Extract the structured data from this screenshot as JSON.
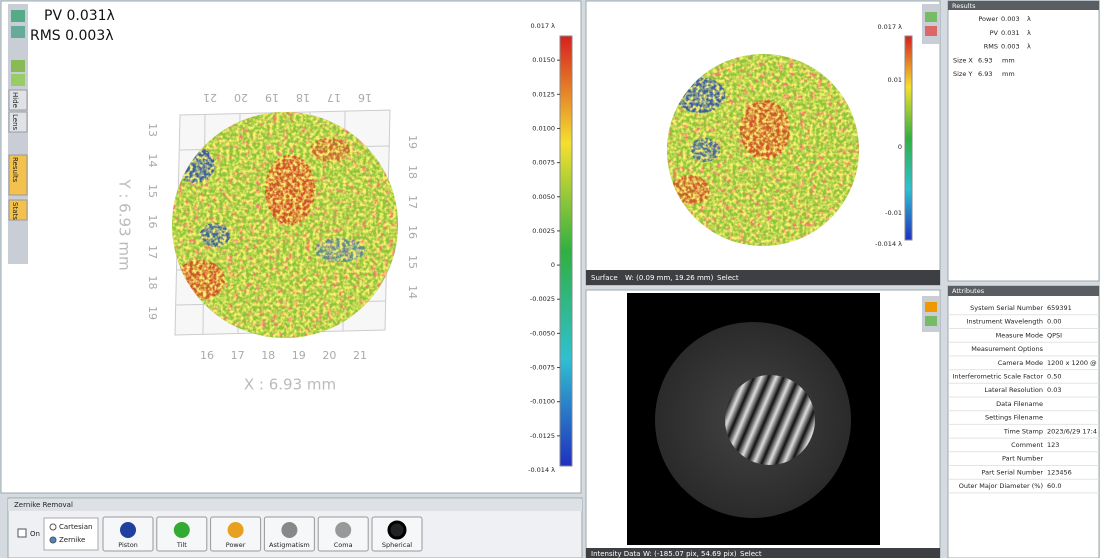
{
  "main_view": {
    "pv_label": "PV 0.031λ",
    "rms_label": "RMS 0.003λ",
    "x_axis_label": "X : 6.93 mm",
    "y_axis_label": "Y : 6.93 mm",
    "top_ticks": [
      "21",
      "20",
      "19",
      "18",
      "17",
      "16"
    ],
    "left_ticks": [
      "13",
      "14",
      "15",
      "16",
      "17",
      "18",
      "19"
    ],
    "bottom_ticks": [
      "16",
      "17",
      "18",
      "19",
      "20",
      "21"
    ],
    "right_ticks": [
      "19",
      "18",
      "17",
      "16",
      "15",
      "14"
    ],
    "colorbar": [
      "0.017 λ",
      "0.0150",
      "0.0125",
      "0.0100",
      "0.0075",
      "0.0050",
      "0.0025",
      "0",
      "-0.0025",
      "-0.0050",
      "-0.0075",
      "-0.0100",
      "-0.0125",
      "-0.014 λ"
    ]
  },
  "side_tabs": [
    "Hide",
    "Lens",
    "Results",
    "Stats"
  ],
  "zernike_panel": {
    "title": "Zernike Removal",
    "on": "On",
    "modes": [
      "Cartesian",
      "Zernike"
    ],
    "buttons": [
      "Piston",
      "Tilt",
      "Power",
      "Astigmatism",
      "Coma",
      "Spherical"
    ]
  },
  "surface_view": {
    "colorbar": [
      "0.017 λ",
      "0.01",
      "0",
      "-0.01",
      "-0.014 λ"
    ],
    "status": {
      "name": "Surface",
      "position": "W: (0.09 mm, 19.26 mm)",
      "tool": "Select"
    }
  },
  "intensity_view": {
    "status": {
      "name": "Intensity Data",
      "position": "W: (-185.07 pix, 54.69 pix)",
      "tool": "Select"
    }
  },
  "results_panel": {
    "title": "Results",
    "rows": [
      {
        "label": "Power",
        "value": "0.003",
        "unit": "λ"
      },
      {
        "label": "PV",
        "value": "0.031",
        "unit": "λ"
      },
      {
        "label": "RMS",
        "value": "0.003",
        "unit": "λ"
      },
      {
        "label": "Size X",
        "value": "6.93",
        "unit": "mm"
      },
      {
        "label": "Size Y",
        "value": "6.93",
        "unit": "mm"
      }
    ]
  },
  "attributes_panel": {
    "title": "Attributes",
    "rows": [
      {
        "label": "System Serial Number",
        "value": "659391"
      },
      {
        "label": "Instrument Wavelength",
        "value": "0.00"
      },
      {
        "label": "Measure Mode",
        "value": "QPSI"
      },
      {
        "label": "Measurement Options"
      },
      {
        "label": "Camera Mode",
        "value": "1200 x 1200 @"
      },
      {
        "label": "Interferometric Scale Factor",
        "value": "0.50"
      },
      {
        "label": "Lateral Resolution",
        "value": "0.03"
      },
      {
        "label": "Data Filename"
      },
      {
        "label": "Settings Filename"
      },
      {
        "label": "Time Stamp",
        "value": "2023/6/29 17:4"
      },
      {
        "label": "Comment",
        "value": "123"
      },
      {
        "label": "Part Number"
      },
      {
        "label": "Part Serial Number",
        "value": "123456"
      },
      {
        "label": "Outer Major Diameter (%)",
        "value": "60.0"
      }
    ]
  }
}
